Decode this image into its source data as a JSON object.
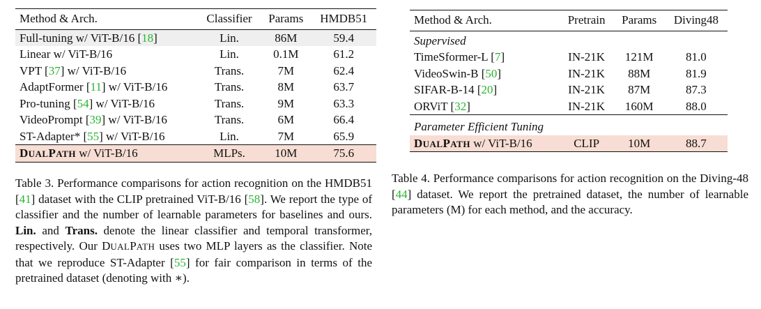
{
  "table3": {
    "headers": [
      "Method & Arch.",
      "Classifier",
      "Params",
      "HMDB51"
    ],
    "rows": [
      {
        "pre": "Full-tuning w/ ViT-B/16 [",
        "cite": "18",
        "post": "]",
        "classifier": "Lin.",
        "params": "86M",
        "score": "59.4"
      },
      {
        "pre": "Linear w/ ViT-B/16",
        "cite": "",
        "post": "",
        "classifier": "Lin.",
        "params": "0.1M",
        "score": "61.2"
      },
      {
        "pre": "VPT [",
        "cite": "37",
        "post": "] w/ ViT-B/16",
        "classifier": "Trans.",
        "params": "7M",
        "score": "62.4"
      },
      {
        "pre": "AdaptFormer [",
        "cite": "11",
        "post": "] w/ ViT-B/16",
        "classifier": "Trans.",
        "params": "8M",
        "score": "63.7"
      },
      {
        "pre": "Pro-tuning [",
        "cite": "54",
        "post": "] w/ ViT-B/16",
        "classifier": "Trans.",
        "params": "9M",
        "score": "63.3"
      },
      {
        "pre": "VideoPrompt [",
        "cite": "39",
        "post": "] w/ ViT-B/16",
        "classifier": "Trans.",
        "params": "6M",
        "score": "66.4"
      },
      {
        "pre": "ST-Adapter* [",
        "cite": "55",
        "post": "] w/ ViT-B/16",
        "classifier": "Lin.",
        "params": "7M",
        "score": "65.9"
      }
    ],
    "ours": {
      "d": "D",
      "ual": "UAL",
      "p": "P",
      "ath": "ATH",
      "suffix": " w/ ViT-B/16",
      "classifier": "MLPs.",
      "params": "10M",
      "score": "75.6"
    },
    "caption": {
      "p1": "Table 3. Performance comparisons for action recognition on the HMDB51 [",
      "c1": "41",
      "p2": "] dataset with the CLIP pretrained ViT-B/16 [",
      "c2": "58",
      "p3": "]. We report the type of classifier and the number of learnable parameters for baselines and ours. ",
      "b1": "Lin.",
      "p4": " and ",
      "b2": "Trans.",
      "p5": " denote the linear classifier and temporal transformer, respectively. Our ",
      "sc_d": "D",
      "sc_ual": "UAL",
      "sc_p": "P",
      "sc_ath": "ATH",
      "p6": " uses two MLP layers as the classifier. Note that we reproduce ST-Adapter [",
      "c3": "55",
      "p7": "] for fair comparison in terms of the pretrained dataset (denoting with ∗)."
    }
  },
  "table4": {
    "headers": [
      "Method & Arch.",
      "Pretrain",
      "Params",
      "Diving48"
    ],
    "group1": "Supervised",
    "rows": [
      {
        "pre": "TimeSformer-L [",
        "cite": "7",
        "post": "]",
        "pretrain": "IN-21K",
        "params": "121M",
        "score": "81.0"
      },
      {
        "pre": "VideoSwin-B [",
        "cite": "50",
        "post": "]",
        "pretrain": "IN-21K",
        "params": "88M",
        "score": "81.9"
      },
      {
        "pre": "SIFAR-B-14 [",
        "cite": "20",
        "post": "]",
        "pretrain": "IN-21K",
        "params": "87M",
        "score": "87.3"
      },
      {
        "pre": "ORViT [",
        "cite": "32",
        "post": "]",
        "pretrain": "IN-21K",
        "params": "160M",
        "score": "88.0"
      }
    ],
    "group2": "Parameter Efficient Tuning",
    "ours": {
      "d": "D",
      "ual": "UAL",
      "p": "P",
      "ath": "ATH",
      "suffix": " w/ ViT-B/16",
      "pretrain": "CLIP",
      "params": "10M",
      "score": "88.7"
    },
    "caption": {
      "p1": "Table 4. Performance comparisons for action recognition on the Diving-48 [",
      "c1": "44",
      "p2": "] dataset. We report the pretrained dataset, the number of learnable parameters (M) for each method, and the accuracy."
    }
  }
}
